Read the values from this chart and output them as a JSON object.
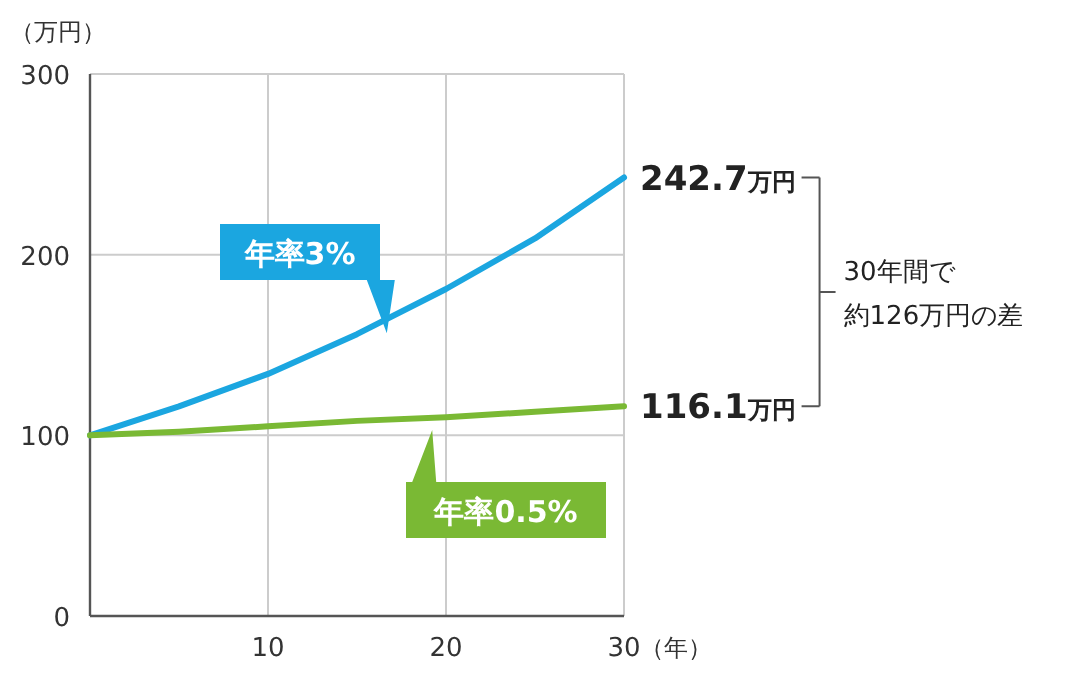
{
  "chart_data": {
    "type": "line",
    "ylabel": "（万円）",
    "xlabel": "（年）",
    "x": [
      0,
      5,
      10,
      15,
      20,
      25,
      30
    ],
    "series": [
      {
        "name": "年率3%",
        "color": "#1ba6e0",
        "values": [
          100,
          116,
          134,
          156,
          181,
          209,
          242.7
        ]
      },
      {
        "name": "年率0.5%",
        "color": "#7ab934",
        "values": [
          100,
          102,
          105,
          108,
          110,
          113,
          116.1
        ]
      }
    ],
    "xlim": [
      0,
      30
    ],
    "ylim": [
      0,
      300
    ],
    "xticks": [
      10,
      20,
      30
    ],
    "yticks": [
      0,
      100,
      200,
      300
    ],
    "grid": true,
    "legend": false,
    "marker": "none",
    "line_style": "solid",
    "annotations": [
      {
        "text": "242.7万円",
        "x": 30,
        "y": 242.7
      },
      {
        "text": "116.1万円",
        "x": 30,
        "y": 116.1
      },
      "30年間で約126万円の差"
    ]
  }
}
